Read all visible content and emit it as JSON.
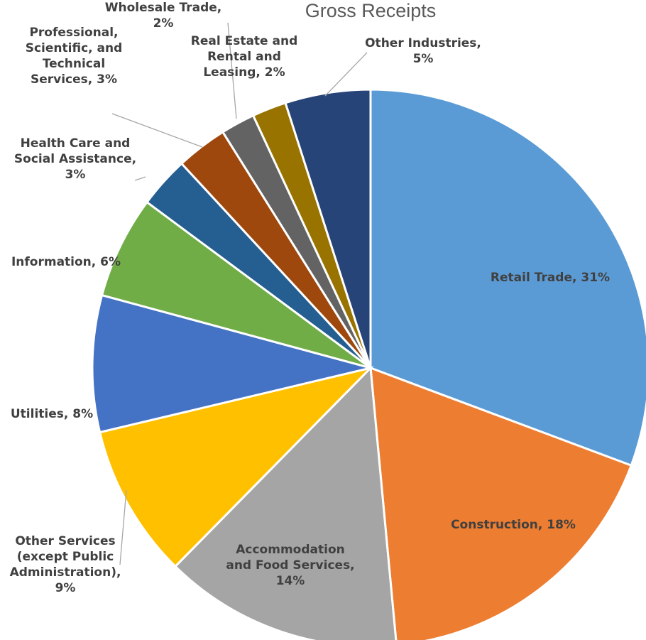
{
  "chart_data": {
    "type": "pie",
    "title": "Gross Receipts",
    "legend": "none",
    "slices": [
      {
        "label": "Retail Trade",
        "value": 31,
        "color": "#5b9bd5",
        "data_label": [
          "Retail Trade, 31%"
        ]
      },
      {
        "label": "Construction",
        "value": 18,
        "color": "#ed7d31",
        "data_label": [
          "Construction, 18%"
        ]
      },
      {
        "label": "Accommodation and Food Services",
        "value": 14,
        "color": "#a5a5a5",
        "data_label": [
          "Accommodation",
          "and Food Services,",
          "14%"
        ]
      },
      {
        "label": "Other Services (except Public Administration)",
        "value": 9,
        "color": "#ffc000",
        "data_label": [
          "Other Services",
          "(except Public",
          "Administration),",
          "9%"
        ]
      },
      {
        "label": "Utilities",
        "value": 8,
        "color": "#4472c4",
        "data_label": [
          "Utilities, 8%"
        ]
      },
      {
        "label": "Information",
        "value": 6,
        "color": "#70ad47",
        "data_label": [
          "Information, 6%"
        ]
      },
      {
        "label": "Health Care and Social Assistance",
        "value": 3,
        "color": "#255e91",
        "data_label": [
          "Health Care and",
          "Social Assistance,",
          "3%"
        ]
      },
      {
        "label": "Professional, Scientific, and Technical Services",
        "value": 3,
        "color": "#9e480e",
        "data_label": [
          "Professional,",
          "Scientific, and",
          "Technical",
          "Services, 3%"
        ]
      },
      {
        "label": "Wholesale Trade",
        "value": 2,
        "color": "#636363",
        "data_label": [
          "Wholesale Trade,",
          "2%"
        ]
      },
      {
        "label": "Real Estate and Rental and Leasing",
        "value": 2,
        "color": "#997300",
        "data_label": [
          "Real Estate and",
          "Rental and",
          "Leasing, 2%"
        ]
      },
      {
        "label": "Other Industries",
        "value": 5,
        "color": "#264478",
        "data_label": [
          "Other Industries,",
          "5%"
        ]
      }
    ]
  }
}
